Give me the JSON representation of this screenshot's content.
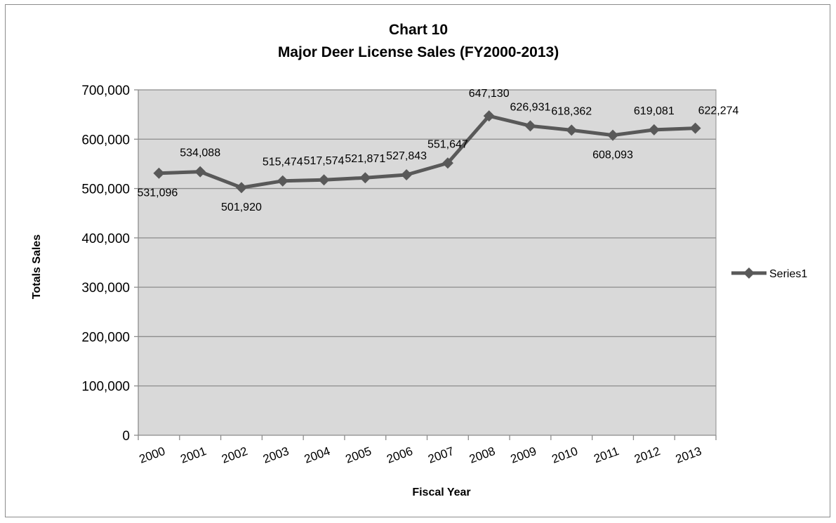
{
  "chart_data": {
    "type": "line",
    "title": "Chart 10",
    "subtitle": "Major Deer License Sales (FY2000-2013)",
    "xlabel": "Fiscal Year",
    "ylabel": "Totals Sales",
    "categories": [
      "2000",
      "2001",
      "2002",
      "2003",
      "2004",
      "2005",
      "2006",
      "2007",
      "2008",
      "2009",
      "2010",
      "2011",
      "2012",
      "2013"
    ],
    "series": [
      {
        "name": "Series1",
        "values": [
          531096,
          534088,
          501920,
          515474,
          517574,
          521871,
          527843,
          551647,
          647130,
          626931,
          618362,
          608093,
          619081,
          622274
        ],
        "data_labels": [
          "531,096",
          "534,088",
          "501,920",
          "515,474",
          "517,574",
          "521,871",
          "527,843",
          "551,647",
          "647,130",
          "626,931",
          "618,362",
          "608,093",
          "619,081",
          "622,274"
        ],
        "color": "#595959"
      }
    ],
    "ylim": [
      0,
      700000
    ],
    "y_ticks": [
      0,
      100000,
      200000,
      300000,
      400000,
      500000,
      600000,
      700000
    ],
    "y_tick_labels": [
      "0",
      "100,000",
      "200,000",
      "300,000",
      "400,000",
      "500,000",
      "600,000",
      "700,000"
    ],
    "grid": true,
    "legend_position": "right",
    "plot_background": "#d9d9d9",
    "gridline_color": "#8c8c8c"
  }
}
